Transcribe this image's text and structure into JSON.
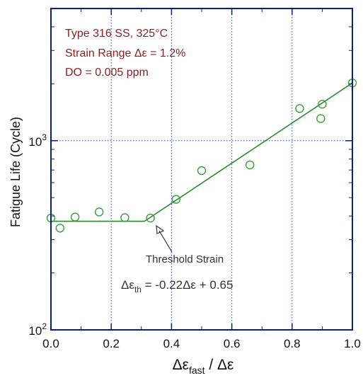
{
  "chart_data": {
    "type": "scatter",
    "x_scale": "linear",
    "y_scale": "log",
    "xlim": [
      0.0,
      1.0
    ],
    "ylim": [
      100,
      5000
    ],
    "x_ticks": [
      0.0,
      0.2,
      0.4,
      0.6,
      0.8,
      1.0
    ],
    "x_tick_labels": [
      "0.0",
      "0.2",
      "0.4",
      "0.6",
      "0.8",
      "1.0"
    ],
    "y_decades": [
      {
        "value": 100,
        "base": "10",
        "exp": "2"
      },
      {
        "value": 1000,
        "base": "10",
        "exp": "3"
      }
    ],
    "xlabel": {
      "prefix": "Δε",
      "sub": "fast",
      "suffix": " / Δε"
    },
    "ylabel": "Fatigue Life (Cycle)",
    "grid": "dotted vertical lines at x ticks, dotted horizontal line at 10^3",
    "annotations": {
      "lines": [
        "Type 316 SS, 325°C",
        "Strain Range Δε = 1.2%",
        "DO = 0.005 ppm"
      ],
      "threshold_label": "Threshold Strain",
      "equation": {
        "prefix": "Δε",
        "sub": "th",
        "suffix": " = -0.22Δε + 0.65"
      }
    },
    "series": [
      {
        "marker": "open-circle",
        "points": [
          {
            "x": 0.0,
            "y": 390
          },
          {
            "x": 0.03,
            "y": 345
          },
          {
            "x": 0.08,
            "y": 395
          },
          {
            "x": 0.16,
            "y": 420
          },
          {
            "x": 0.245,
            "y": 392
          },
          {
            "x": 0.33,
            "y": 390
          },
          {
            "x": 0.415,
            "y": 490
          },
          {
            "x": 0.5,
            "y": 695
          },
          {
            "x": 0.66,
            "y": 745
          },
          {
            "x": 0.825,
            "y": 1480
          },
          {
            "x": 0.895,
            "y": 1310
          },
          {
            "x": 0.9,
            "y": 1560
          },
          {
            "x": 1.0,
            "y": 2020
          }
        ]
      }
    ],
    "fit_line": [
      {
        "x": 0.0,
        "y": 375
      },
      {
        "x": 0.31,
        "y": 375
      },
      {
        "x": 1.0,
        "y": 2020
      }
    ],
    "colors": {
      "frame": "#0c1d8a",
      "grid": "#3344aa",
      "marker": "#3a9c3a",
      "fit": "#2a8a2a",
      "annotation": "#8a1f1f"
    }
  }
}
